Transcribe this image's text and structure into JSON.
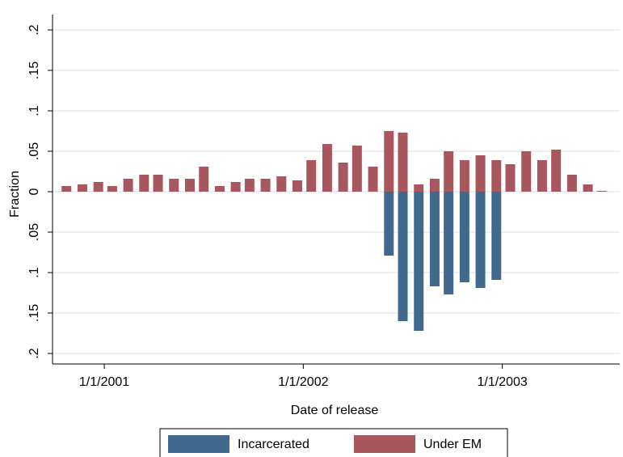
{
  "chart_data": {
    "type": "bar",
    "x_label": "Date of release",
    "y_label": "Fraction",
    "x": [
      2000.81,
      2000.89,
      2000.97,
      2001.04,
      2001.12,
      2001.2,
      2001.27,
      2001.35,
      2001.43,
      2001.5,
      2001.58,
      2001.66,
      2001.73,
      2001.81,
      2001.89,
      2001.97,
      2002.04,
      2002.12,
      2002.2,
      2002.27,
      2002.35,
      2002.43,
      2002.5,
      2002.58,
      2002.66,
      2002.73,
      2002.81,
      2002.89,
      2002.97,
      2003.04,
      2003.12,
      2003.2,
      2003.27,
      2003.35,
      2003.43,
      2003.5
    ],
    "series": [
      {
        "name": "Incarcerated",
        "color": "#41698e",
        "values": [
          0,
          0,
          0,
          0,
          0,
          0,
          0,
          0,
          0,
          0,
          0,
          0,
          0,
          0,
          0,
          0,
          0,
          0,
          0,
          0,
          0,
          -0.079,
          -0.16,
          -0.172,
          -0.117,
          -0.127,
          -0.112,
          -0.119,
          -0.109,
          0,
          0,
          0,
          0,
          0,
          0,
          0
        ]
      },
      {
        "name": "Under EM",
        "color": "#a8575e",
        "values": [
          0.007,
          0.009,
          0.012,
          0.007,
          0.016,
          0.021,
          0.021,
          0.016,
          0.016,
          0.031,
          0.007,
          0.012,
          0.016,
          0.016,
          0.019,
          0.014,
          0.039,
          0.059,
          0.036,
          0.057,
          0.031,
          0.075,
          0.073,
          0.009,
          0.016,
          0.05,
          0.039,
          0.045,
          0.039,
          0.034,
          0.05,
          0.039,
          0.052,
          0.021,
          0.009,
          0
        ]
      }
    ],
    "xlim": [
      2000.74,
      2003.59
    ],
    "xticks": [
      {
        "value": 2001,
        "label": "1/1/2001"
      },
      {
        "value": 2002,
        "label": "1/1/2002"
      },
      {
        "value": 2003,
        "label": "1/1/2003"
      }
    ],
    "ylim": [
      -0.213,
      0.219
    ],
    "yticks": [
      {
        "value": 0.2,
        "label": ".2"
      },
      {
        "value": 0.15,
        "label": ".15"
      },
      {
        "value": 0.1,
        "label": ".1"
      },
      {
        "value": 0.05,
        "label": ".05"
      },
      0,
      {
        "value": -0.05,
        "label": ".05"
      },
      {
        "value": -0.1,
        "label": ".1"
      },
      {
        "value": -0.15,
        "label": ".15"
      },
      {
        "value": -0.2,
        "label": ".2"
      }
    ],
    "grid": true
  }
}
